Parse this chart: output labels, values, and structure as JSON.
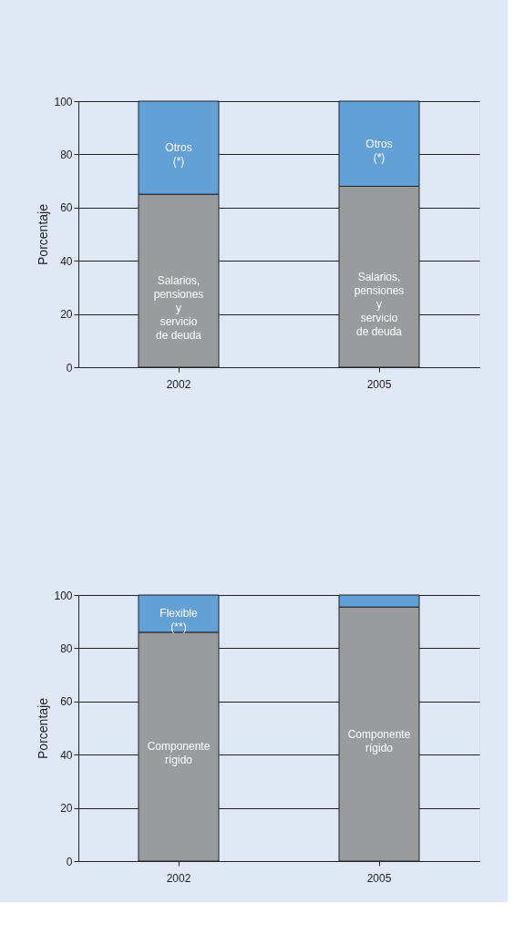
{
  "chart_data": [
    {
      "type": "bar",
      "stacked": true,
      "categories": [
        "2002",
        "2005"
      ],
      "ylabel": "Porcentaje",
      "ylim": [
        0,
        100
      ],
      "yticks": [
        0,
        20,
        40,
        60,
        80,
        100
      ],
      "grid": "y",
      "legend": false,
      "series": [
        {
          "name": "Salarios,\npensiones\ny\nservicio\nde deuda",
          "color": "#9a9b9d",
          "values": [
            65,
            68
          ]
        },
        {
          "name": "Otros\n(*)",
          "color": "#62a0d6",
          "values": [
            35,
            32
          ]
        }
      ]
    },
    {
      "type": "bar",
      "stacked": true,
      "categories": [
        "2002",
        "2005"
      ],
      "ylabel": "Porcentaje",
      "ylim": [
        0,
        100
      ],
      "yticks": [
        0,
        20,
        40,
        60,
        80,
        100
      ],
      "grid": "y",
      "legend": false,
      "series": [
        {
          "name": "Componente\nrígido",
          "color": "#9a9b9d",
          "values": [
            86,
            95.5
          ]
        },
        {
          "name": "Flexible\n(**)",
          "color": "#62a0d6",
          "values": [
            14,
            4.5
          ]
        }
      ]
    }
  ]
}
